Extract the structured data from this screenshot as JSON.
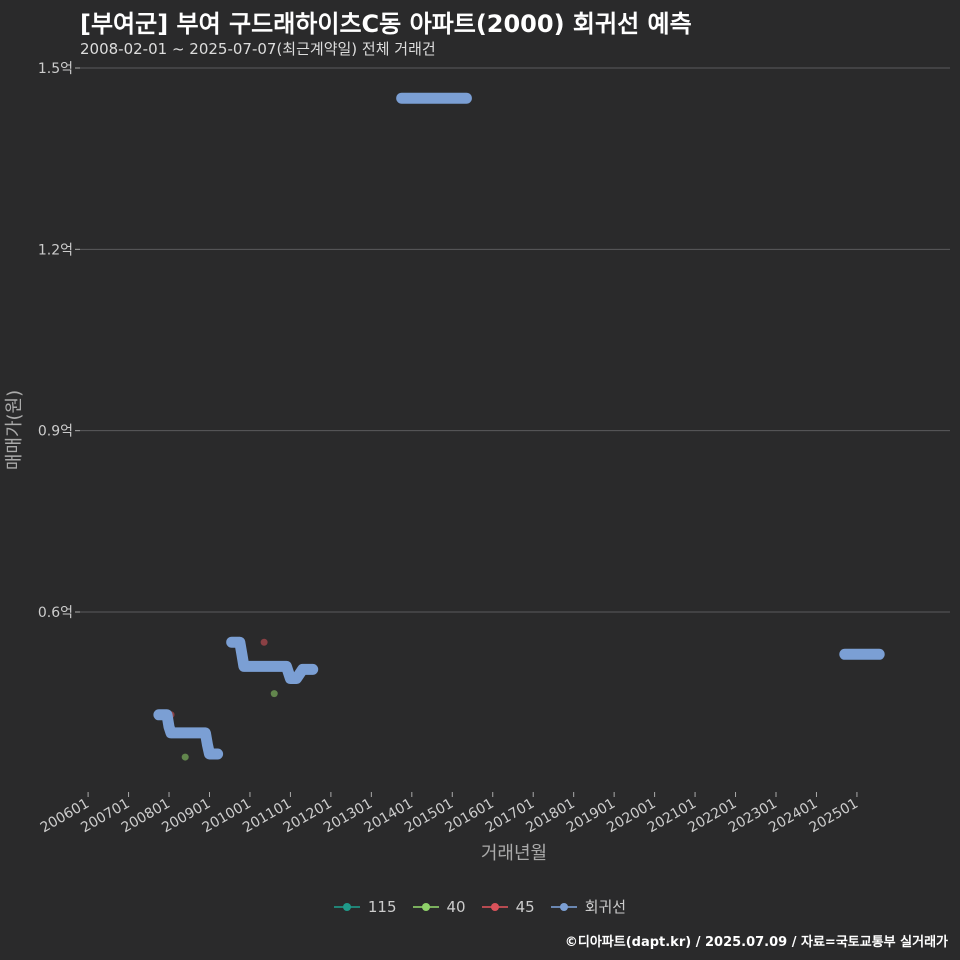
{
  "header": {
    "title": "[부여군] 부여 구드래하이츠C동 아파트(2000) 회귀선 예측",
    "subtitle": "2008-02-01 ~ 2025-07-07(최근계약일) 전체 거래건"
  },
  "footer": {
    "credit": "©디아파트(dapt.kr) / 2025.07.09 / 자료=국토교통부 실거래가"
  },
  "chart_data": {
    "type": "scatter",
    "title": "[부여군] 부여 구드래하이츠C동 아파트(2000) 회귀선 예측",
    "subtitle": "2008-02-01 ~ 2025-07-07(최근계약일) 전체 거래건",
    "xlabel": "거래년월",
    "ylabel": "매매가(원)",
    "x_ticks": [
      "200601",
      "200701",
      "200801",
      "200901",
      "201001",
      "201101",
      "201201",
      "201301",
      "201401",
      "201501",
      "201601",
      "201701",
      "201801",
      "201901",
      "202001",
      "202101",
      "202201",
      "202301",
      "202401",
      "202501"
    ],
    "y_ticks": [
      {
        "value": 0.6,
        "label": "0.6억"
      },
      {
        "value": 0.9,
        "label": "0.9억"
      },
      {
        "value": 1.2,
        "label": "1.2억"
      },
      {
        "value": 1.5,
        "label": "1.5억"
      }
    ],
    "xlim": [
      2005.8,
      2027.3
    ],
    "ylim": [
      0.3,
      1.5
    ],
    "colors": {
      "115": "#1f9a8a",
      "40": "#8fd16a",
      "45": "#d9525a",
      "회귀선": "#7b9fd4"
    },
    "legend": [
      "115",
      "40",
      "45",
      "회귀선"
    ],
    "series": [
      {
        "name": "40",
        "points": [
          [
            2008.4,
            0.36
          ],
          [
            2010.6,
            0.465
          ]
        ]
      },
      {
        "name": "45",
        "points": [
          [
            2008.05,
            0.43
          ],
          [
            2010.35,
            0.55
          ]
        ]
      },
      {
        "name": "115",
        "points": []
      },
      {
        "name": "회귀선",
        "segments": [
          [
            [
              2007.75,
              0.43
            ],
            [
              2007.95,
              0.43
            ],
            [
              2008.0,
              0.41
            ],
            [
              2008.05,
              0.4
            ],
            [
              2008.9,
              0.4
            ],
            [
              2008.95,
              0.38
            ],
            [
              2009.0,
              0.365
            ],
            [
              2009.2,
              0.365
            ]
          ],
          [
            [
              2009.55,
              0.55
            ],
            [
              2009.75,
              0.55
            ],
            [
              2009.8,
              0.53
            ],
            [
              2009.85,
              0.51
            ],
            [
              2010.9,
              0.51
            ],
            [
              2011.0,
              0.49
            ],
            [
              2011.15,
              0.49
            ],
            [
              2011.3,
              0.505
            ],
            [
              2011.55,
              0.505
            ]
          ],
          [
            [
              2013.75,
              1.45
            ],
            [
              2015.35,
              1.45
            ]
          ],
          [
            [
              2024.7,
              0.53
            ],
            [
              2025.55,
              0.53
            ]
          ]
        ]
      }
    ]
  }
}
